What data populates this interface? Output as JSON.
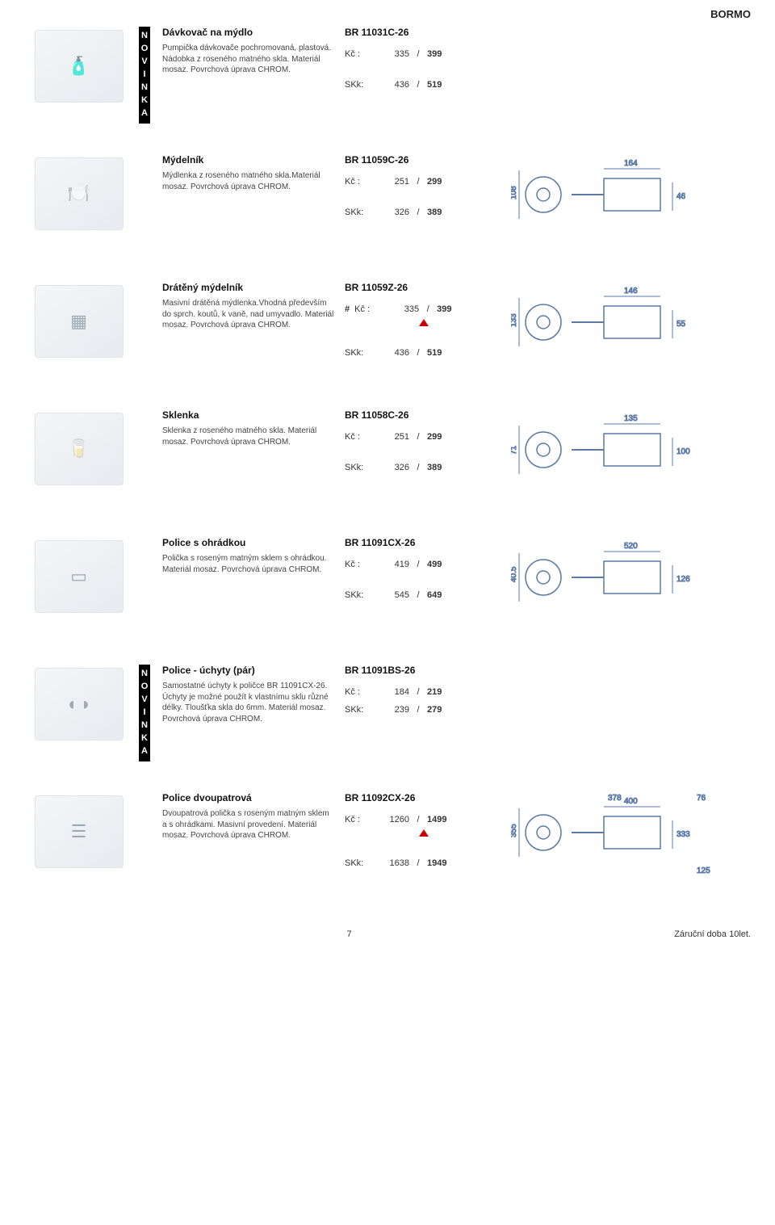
{
  "header": {
    "brand": "BORMO"
  },
  "novinka_letters": [
    "N",
    "O",
    "V",
    "I",
    "N",
    "K",
    "A"
  ],
  "labels": {
    "kc": "Kč :",
    "skk": "SKk:",
    "slash": "/"
  },
  "footer": {
    "page": "7",
    "warranty": "Záruční doba 10let."
  },
  "products": [
    {
      "novinka": true,
      "title": "Dávkovač na mýdlo",
      "desc": "Pumpička dávkovače pochromovaná, plastová. Nádobka z roseného matného skla. Materiál mosaz. Povrchová úprava CHROM.",
      "sku": "BR 11031C-26",
      "kc1": "335",
      "kc2": "399",
      "skk1": "436",
      "skk2": "519",
      "hash": false,
      "arrow": false,
      "icon": "🧴",
      "diagram": null
    },
    {
      "novinka": false,
      "title": "Mýdelník",
      "desc": "Mýdlenka z roseného matného skla.Materiál mosaz. Povrchová úprava CHROM.",
      "sku": "BR 11059C-26",
      "kc1": "251",
      "kc2": "299",
      "skk1": "326",
      "skk2": "389",
      "hash": false,
      "arrow": false,
      "icon": "🍽️",
      "diagram": {
        "w": "164",
        "h1": "108",
        "h2": "46"
      }
    },
    {
      "novinka": false,
      "title": "Drátěný mýdelník",
      "desc": "Masivní drátěná mýdlenka.Vhodná především do sprch. koutů, k vaně, nad umyvadlo. Materiál mosaz. Povrchová úprava CHROM.",
      "sku": "BR 11059Z-26",
      "kc1": "335",
      "kc2": "399",
      "skk1": "436",
      "skk2": "519",
      "hash": true,
      "arrow": true,
      "icon": "▦",
      "diagram": {
        "w": "146",
        "h1": "133",
        "h2": "55"
      }
    },
    {
      "novinka": false,
      "title": "Sklenka",
      "desc": "Sklenka z roseného matného skla. Materiál mosaz. Povrchová úprava CHROM.",
      "sku": "BR 11058C-26",
      "kc1": "251",
      "kc2": "299",
      "skk1": "326",
      "skk2": "389",
      "hash": false,
      "arrow": false,
      "icon": "🥛",
      "diagram": {
        "w": "135",
        "h1": "71",
        "h2": "100"
      }
    },
    {
      "novinka": false,
      "title": "Police s ohrádkou",
      "desc": "Polička s roseným matným sklem s ohrádkou. Materiál mosaz. Povrchová úprava CHROM.",
      "sku": "BR 11091CX-26",
      "kc1": "419",
      "kc2": "499",
      "skk1": "545",
      "skk2": "649",
      "hash": false,
      "arrow": false,
      "icon": "▭",
      "diagram": {
        "w": "520",
        "h1": "40.5",
        "h2": "126"
      }
    },
    {
      "novinka": true,
      "title": "Police - úchyty (pár)",
      "desc": "Samostatné úchyty k poličce BR 11091CX-26. Úchyty je možné použít k vlastnímu sklu různé délky. Tloušťka skla do 6mm. Materiál mosaz. Povrchová úprava CHROM.",
      "sku": "BR 11091BS-26",
      "kc1": "184",
      "kc2": "219",
      "skk1": "239",
      "skk2": "279",
      "hash": false,
      "arrow": false,
      "icon": "◐◑",
      "diagram": null
    },
    {
      "novinka": false,
      "title": "Police dvoupatrová",
      "desc": "Dvoupatrová polička s roseným matným sklem a s ohrádkami. Masivní provedení. Materiál mosaz. Povrchová úprava CHROM.",
      "sku": "BR 11092CX-26",
      "kc1": "1260",
      "kc2": "1499",
      "skk1": "1638",
      "skk2": "1949",
      "hash": false,
      "arrow": true,
      "icon": "☰",
      "diagram": {
        "w": "400",
        "w2": "378",
        "h1": "355",
        "h2": "333",
        "side_w": "125",
        "side_w2": "76"
      }
    }
  ]
}
